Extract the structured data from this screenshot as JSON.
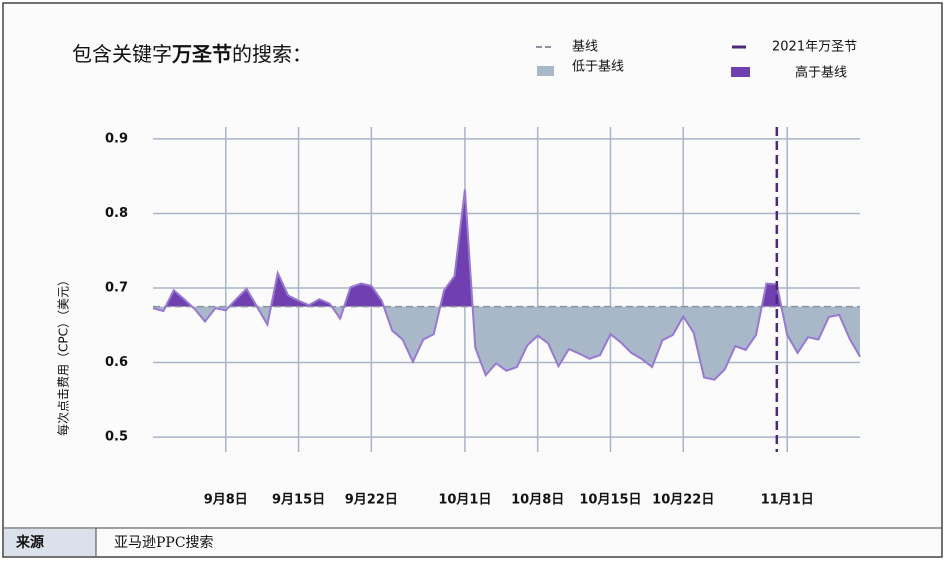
{
  "chart_data": {
    "type": "area-baseline",
    "title": [
      "包含关键字",
      "万圣节",
      "的搜索："
    ],
    "ylabel": "每次点击费用（CPC）（美元）",
    "categories": [
      null,
      null,
      null,
      null,
      null,
      null,
      null,
      "9月8日",
      null,
      null,
      null,
      null,
      null,
      null,
      "9月15日",
      null,
      null,
      null,
      null,
      null,
      null,
      "9月22日",
      null,
      null,
      null,
      null,
      null,
      null,
      null,
      null,
      "10月1日",
      null,
      null,
      null,
      null,
      null,
      null,
      "10月8日",
      null,
      null,
      null,
      null,
      null,
      null,
      "10月15日",
      null,
      null,
      null,
      null,
      null,
      null,
      "10月22日",
      null,
      null,
      null,
      null,
      null,
      null,
      null,
      null,
      null,
      "11月1日",
      null,
      null,
      null,
      null,
      null,
      null,
      null
    ],
    "values": [
      0.673,
      0.669,
      0.697,
      0.685,
      0.672,
      0.655,
      0.673,
      0.67,
      0.685,
      0.699,
      0.675,
      0.651,
      0.72,
      0.69,
      0.683,
      0.677,
      0.685,
      0.679,
      0.659,
      0.701,
      0.706,
      0.703,
      0.683,
      0.643,
      0.631,
      0.601,
      0.631,
      0.638,
      0.697,
      0.716,
      0.832,
      0.62,
      0.583,
      0.599,
      0.589,
      0.594,
      0.623,
      0.636,
      0.626,
      0.595,
      0.618,
      0.612,
      0.605,
      0.61,
      0.638,
      0.627,
      0.613,
      0.605,
      0.594,
      0.63,
      0.637,
      0.662,
      0.64,
      0.58,
      0.577,
      0.591,
      0.622,
      0.617,
      0.637,
      0.706,
      0.705,
      0.637,
      0.613,
      0.634,
      0.631,
      0.661,
      0.664,
      0.632,
      0.608
    ],
    "baseline": {
      "name": "基线",
      "value": 0.675,
      "color": "#8a93a0"
    },
    "below": {
      "name": "低于基线",
      "color": "#a9b8c8"
    },
    "above": {
      "name": "高于基线",
      "color": "#7040b0"
    },
    "line_color": "#9878d0",
    "event": {
      "name": "2021年万圣节",
      "index": 60,
      "color": "#4b2a7a"
    },
    "ylim": [
      0.48,
      0.916
    ],
    "yticks": [
      0.5,
      0.6,
      0.7,
      0.8,
      0.9
    ],
    "grid": true
  },
  "source": {
    "label": "来源",
    "text": "亚马逊PPC搜索"
  }
}
